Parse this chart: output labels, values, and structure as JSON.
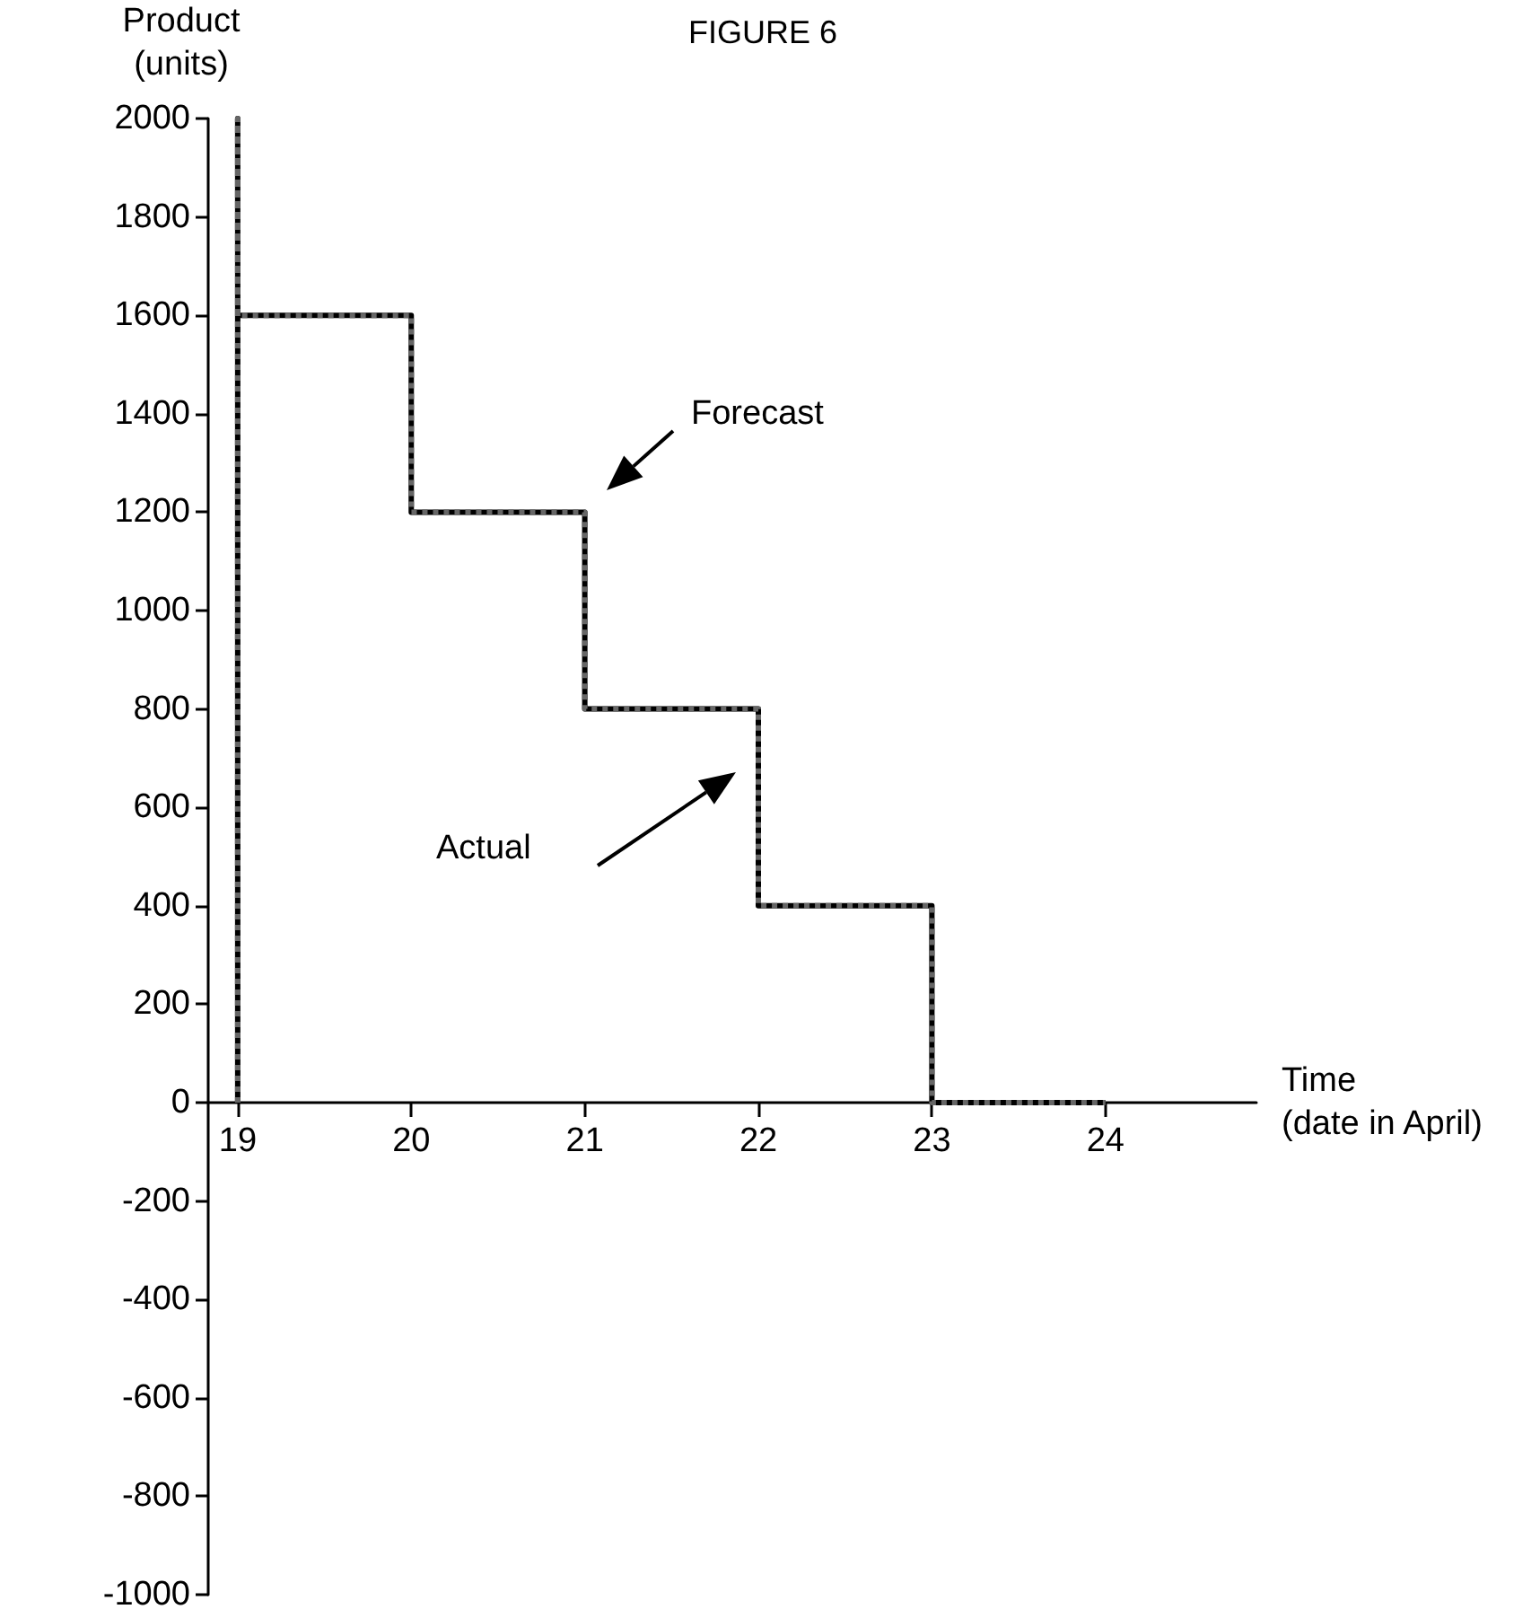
{
  "chart_data": {
    "type": "line",
    "title": "FIGURE 6",
    "xlabel": "Time\n(date in April)",
    "ylabel": "Product\n(units)",
    "series": [
      {
        "color": "#000000",
        "line_style": "solid",
        "x": [
          19,
          19,
          19,
          20,
          20,
          21,
          21,
          22,
          22,
          23,
          23,
          24
        ],
        "values": [
          0,
          2000,
          1600,
          1600,
          1200,
          1200,
          800,
          800,
          400,
          400,
          0,
          0
        ]
      },
      {
        "color": "#666666",
        "line_style": "dotted",
        "x": [
          19,
          19,
          19,
          20,
          20,
          21,
          21,
          22,
          22,
          23,
          23,
          24
        ],
        "values": [
          0,
          2000,
          1600,
          1600,
          1200,
          1200,
          800,
          800,
          400,
          400,
          0,
          0
        ]
      }
    ],
    "annotations": [
      "Forecast",
      "Actual"
    ],
    "xlim": [
      18.83,
      24.87
    ],
    "xticks": [
      19,
      20,
      21,
      22,
      23,
      24
    ],
    "ylim": [
      -1000,
      2000
    ],
    "yticks": [
      -1000,
      -800,
      -600,
      -400,
      -200,
      0,
      200,
      400,
      600,
      800,
      1000,
      1200,
      1400,
      1600,
      1800,
      2000
    ],
    "marker": "none"
  }
}
